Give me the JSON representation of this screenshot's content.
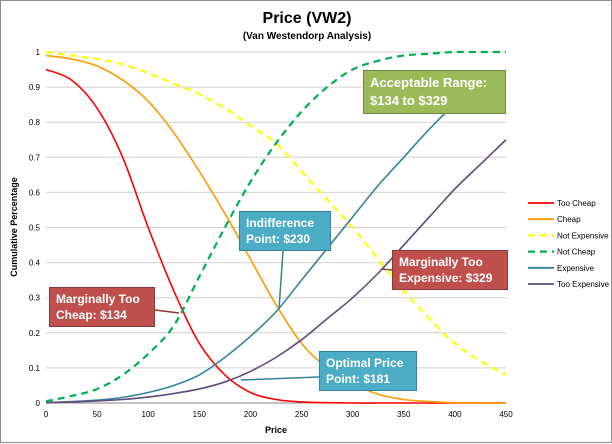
{
  "chart_data": {
    "type": "line",
    "title": "Price (VW2)",
    "subtitle": "(Van Westendorp Analysis)",
    "xlabel": "Price",
    "ylabel": "Cumulative Percentage",
    "xlim": [
      0,
      450
    ],
    "ylim": [
      0,
      1
    ],
    "xticks": [
      "0",
      "50",
      "100",
      "150",
      "200",
      "250",
      "300",
      "350",
      "400",
      "450"
    ],
    "yticks": [
      "0",
      "0.1",
      "0.2",
      "0.3",
      "0.4",
      "0.5",
      "0.6",
      "0.7",
      "0.8",
      "0.9",
      "1"
    ],
    "grid": "horizontal",
    "legend_position": "right",
    "x": [
      0,
      25,
      50,
      75,
      100,
      125,
      150,
      175,
      200,
      225,
      250,
      275,
      300,
      325,
      350,
      375,
      400,
      425,
      450
    ],
    "series": [
      {
        "name": "Too Cheap",
        "color": "#FF0000",
        "dash": false,
        "values": [
          0.95,
          0.92,
          0.84,
          0.7,
          0.5,
          0.32,
          0.17,
          0.08,
          0.03,
          0.01,
          0.003,
          0.001,
          0,
          0,
          0,
          0,
          0,
          0,
          0
        ]
      },
      {
        "name": "Cheap",
        "color": "#FF9900",
        "dash": false,
        "values": [
          0.99,
          0.98,
          0.96,
          0.92,
          0.86,
          0.77,
          0.66,
          0.54,
          0.41,
          0.28,
          0.17,
          0.1,
          0.055,
          0.025,
          0.01,
          0.004,
          0.001,
          0,
          0
        ]
      },
      {
        "name": "Not Expensive",
        "color": "#FFFF00",
        "dash": true,
        "values": [
          1.0,
          0.99,
          0.98,
          0.965,
          0.94,
          0.91,
          0.88,
          0.84,
          0.79,
          0.74,
          0.66,
          0.58,
          0.5,
          0.41,
          0.32,
          0.24,
          0.17,
          0.12,
          0.08
        ]
      },
      {
        "name": "Not Cheap",
        "color": "#00B050",
        "dash": true,
        "values": [
          0.005,
          0.02,
          0.04,
          0.08,
          0.14,
          0.22,
          0.36,
          0.5,
          0.63,
          0.74,
          0.83,
          0.9,
          0.95,
          0.975,
          0.99,
          0.995,
          1.0,
          1.0,
          1.0
        ]
      },
      {
        "name": "Expensive",
        "color": "#31849B",
        "dash": false,
        "values": [
          0.001,
          0.004,
          0.008,
          0.016,
          0.03,
          0.05,
          0.08,
          0.13,
          0.19,
          0.26,
          0.35,
          0.44,
          0.53,
          0.62,
          0.7,
          0.78,
          0.85,
          0.89,
          0.92
        ]
      },
      {
        "name": "Too Expensive",
        "color": "#604A7B",
        "dash": false,
        "values": [
          0.001,
          0.003,
          0.006,
          0.01,
          0.017,
          0.027,
          0.04,
          0.06,
          0.09,
          0.13,
          0.18,
          0.24,
          0.3,
          0.37,
          0.45,
          0.53,
          0.61,
          0.68,
          0.75
        ]
      }
    ],
    "annotations": {
      "acceptable_range": {
        "line1": "Acceptable Range:",
        "line2": "$134 to $329",
        "color": "#9BBB59"
      },
      "indifference": {
        "line1": "Indifference",
        "line2": "Point: $230",
        "color": "#4BACC6"
      },
      "marginally_too_cheap": {
        "line1": "Marginally Too",
        "line2": "Cheap: $134",
        "color": "#C0504D"
      },
      "marginally_too_expensive": {
        "line1": "Marginally Too",
        "line2": "Expensive: $329",
        "color": "#C0504D"
      },
      "optimal": {
        "line1": "Optimal Price",
        "line2": "Point: $181",
        "color": "#4BACC6"
      }
    }
  }
}
